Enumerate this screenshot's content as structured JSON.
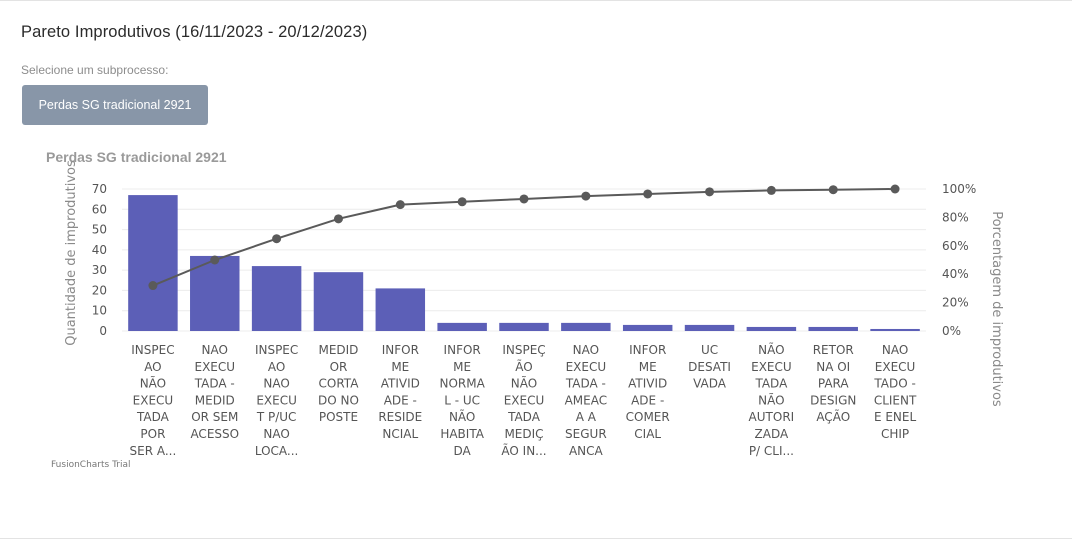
{
  "page": {
    "title": "Pareto Improdutivos (16/11/2023 - 20/12/2023)",
    "subprocess_label": "Selecione um subprocesso:",
    "subprocess_button": "Perdas SG tradicional 2921"
  },
  "colors": {
    "bar": "#5c5fb7",
    "line": "#5a5a5a",
    "grid": "#ececec",
    "button": "#8896a8"
  },
  "chart_data": {
    "type": "bar",
    "title": "Perdas SG tradicional 2921",
    "ylabel": "Quantidade de improdutivos",
    "y2label": "Porcentagem de improdutivos",
    "ylim": [
      0,
      70
    ],
    "y2lim": [
      0,
      100
    ],
    "yticks": [
      "0",
      "10",
      "20",
      "30",
      "40",
      "50",
      "60",
      "70"
    ],
    "y2ticks": [
      "0%",
      "20%",
      "40%",
      "60%",
      "80%",
      "100%"
    ],
    "categories": [
      [
        "INSPEC",
        "AO",
        "NÃO",
        "EXECU",
        "TADA",
        "POR",
        "SER A..."
      ],
      [
        "NAO",
        "EXECU",
        "TADA -",
        "MEDID",
        "OR SEM",
        "ACESSO"
      ],
      [
        "INSPEC",
        "AO",
        "NAO",
        "EXECU",
        "T P/UC",
        "NAO",
        "LOCA..."
      ],
      [
        "MEDID",
        "OR",
        "CORTA",
        "DO NO",
        "POSTE"
      ],
      [
        "INFOR",
        "ME",
        "ATIVID",
        "ADE -",
        "RESIDE",
        "NCIAL"
      ],
      [
        "INFOR",
        "ME",
        "NORMA",
        "L - UC",
        "NÃO",
        "HABITA",
        "DA"
      ],
      [
        "INSPEÇ",
        "ÃO",
        "NÃO",
        "EXECU",
        "TADA",
        "MEDIÇ",
        "ÃO IN..."
      ],
      [
        "NAO",
        "EXECU",
        "TADA -",
        "AMEAC",
        "A A",
        "SEGUR",
        "ANCA"
      ],
      [
        "INFOR",
        "ME",
        "ATIVID",
        "ADE -",
        "COMER",
        "CIAL"
      ],
      [
        "UC",
        "DESATI",
        "VADA"
      ],
      [
        "NÃO",
        "EXECU",
        "TADA",
        "NÃO",
        "AUTORI",
        "ZADA",
        "P/ CLI..."
      ],
      [
        "RETOR",
        "NA OI",
        "PARA",
        "DESIGN",
        "AÇÃO"
      ],
      [
        "NAO",
        "EXECU",
        "TADO -",
        "CLIENT",
        "E ENEL",
        "CHIP"
      ]
    ],
    "series": [
      {
        "type": "bar",
        "values": [
          67,
          37,
          32,
          29,
          21,
          4,
          4,
          4,
          3,
          3,
          2,
          2,
          1
        ]
      },
      {
        "type": "line",
        "axis": "secondary",
        "values": [
          32,
          50,
          65,
          79,
          89,
          91,
          93,
          95,
          96.5,
          98,
          99,
          99.5,
          100
        ]
      }
    ],
    "watermark": "FusionCharts Trial",
    "grid": true
  }
}
